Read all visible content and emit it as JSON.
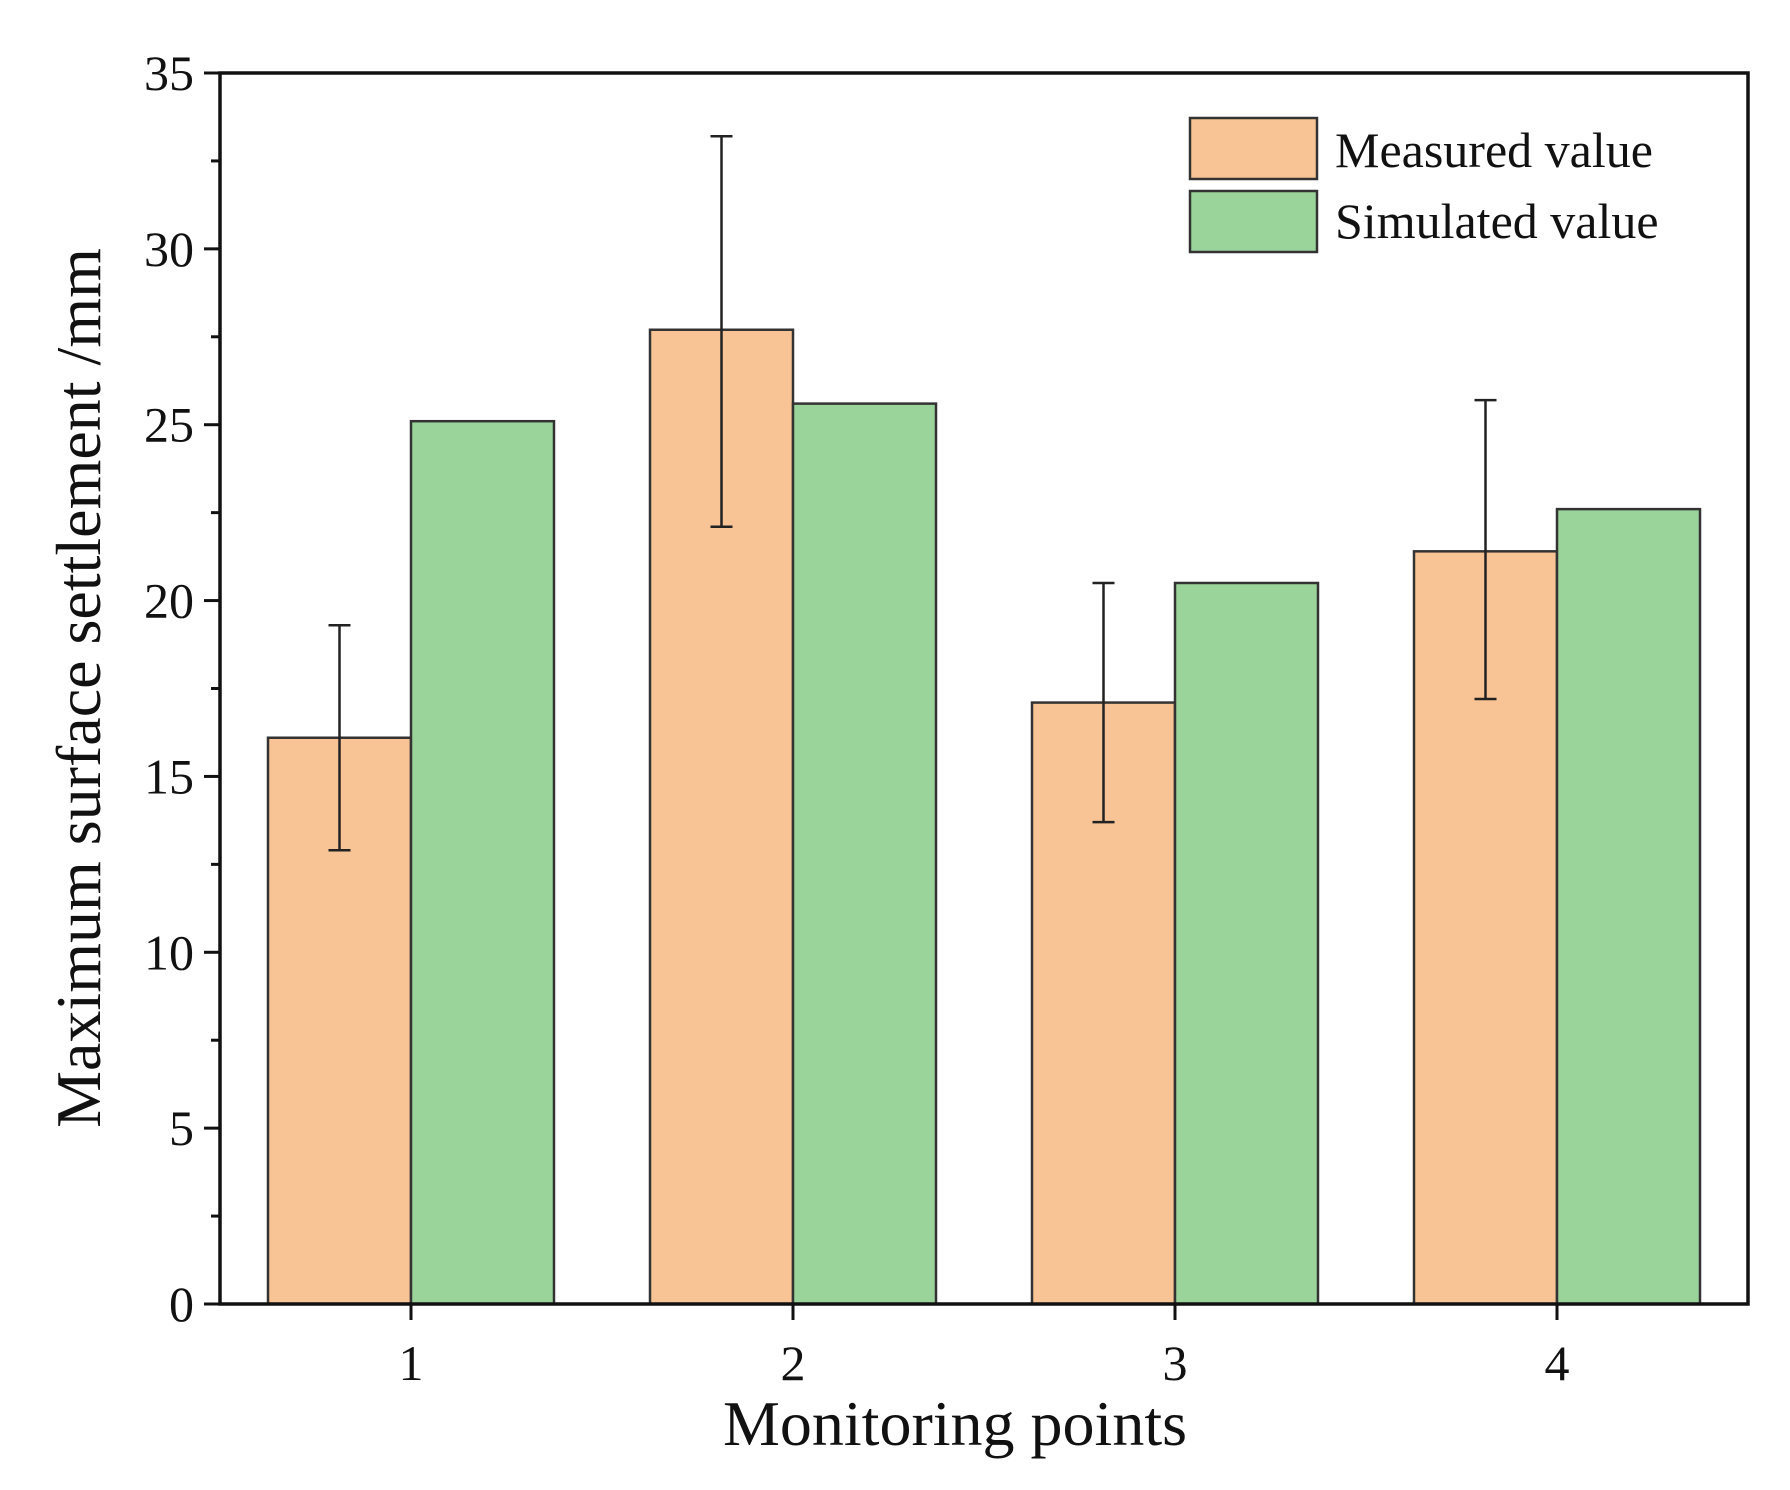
{
  "chart_data": {
    "type": "bar",
    "title": "",
    "xlabel": "Monitoring points",
    "ylabel": "Maximum surface settlement /mm",
    "categories": [
      "1",
      "2",
      "3",
      "4"
    ],
    "ylim": [
      0,
      35
    ],
    "yticks": [
      0,
      5,
      10,
      15,
      20,
      25,
      30,
      35
    ],
    "ytick_labels": [
      "0",
      "5",
      "10",
      "15",
      "20",
      "25",
      "30",
      "35"
    ],
    "grid": false,
    "legend_position": "top-right",
    "series": [
      {
        "name": "Measured value",
        "color": "#f9c495",
        "values": [
          16.1,
          27.7,
          17.1,
          21.4
        ],
        "error_low": [
          12.9,
          22.1,
          13.7,
          17.2
        ],
        "error_high": [
          19.3,
          33.2,
          20.5,
          25.7
        ]
      },
      {
        "name": "Simulated value",
        "color": "#9bd49b",
        "values": [
          25.1,
          25.6,
          20.5,
          22.6
        ]
      }
    ]
  }
}
